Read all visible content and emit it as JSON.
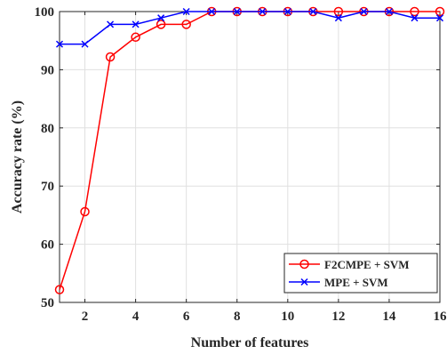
{
  "chart_data": {
    "type": "line",
    "xlabel": "Number of features",
    "ylabel": "Accuracy rate (%)",
    "xlim": [
      1,
      16
    ],
    "ylim": [
      50,
      100
    ],
    "xticks": [
      2,
      4,
      6,
      8,
      10,
      12,
      14,
      16
    ],
    "yticks": [
      50,
      60,
      70,
      80,
      90,
      100
    ],
    "xtick_labels": [
      "2",
      "4",
      "6",
      "8",
      "10",
      "12",
      "14",
      "16"
    ],
    "ytick_labels": [
      "50",
      "60",
      "70",
      "80",
      "90",
      "100"
    ],
    "grid": true,
    "legend_position": "bottom-right",
    "x": [
      1,
      2,
      3,
      4,
      5,
      6,
      7,
      8,
      9,
      10,
      11,
      12,
      13,
      14,
      15,
      16
    ],
    "series": [
      {
        "name": "F2CMPE + SVM",
        "color": "#ff0000",
        "marker": "circle",
        "values": [
          52.2,
          65.6,
          92.2,
          95.6,
          97.8,
          97.8,
          100,
          100,
          100,
          100,
          100,
          100,
          100,
          100,
          100,
          100
        ]
      },
      {
        "name": "MPE + SVM",
        "color": "#0000ff",
        "marker": "x",
        "values": [
          94.4,
          94.4,
          97.8,
          97.8,
          98.9,
          100,
          100,
          100,
          100,
          100,
          100,
          98.9,
          100,
          100,
          98.9,
          98.9
        ]
      }
    ]
  }
}
